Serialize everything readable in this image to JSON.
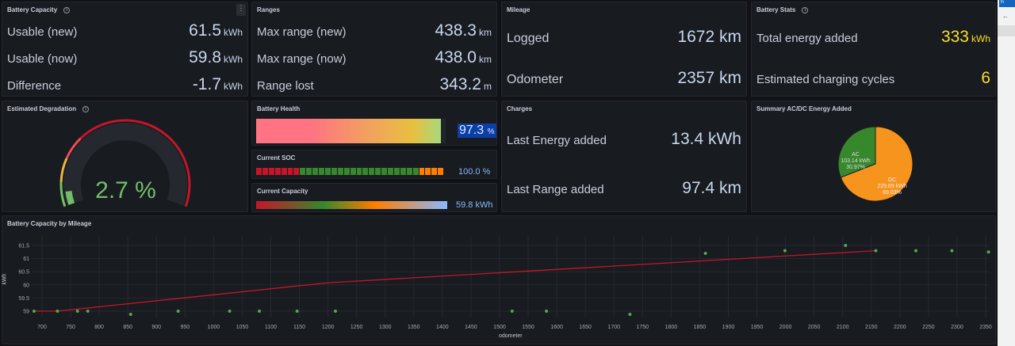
{
  "battery_capacity": {
    "title": "Battery Capacity",
    "rows": [
      {
        "label": "Usable (new)",
        "value": "61.5",
        "unit": "kWh"
      },
      {
        "label": "Usable (now)",
        "value": "59.8",
        "unit": "kWh"
      },
      {
        "label": "Difference",
        "value": "-1.7",
        "unit": "kWh"
      }
    ]
  },
  "ranges": {
    "title": "Ranges",
    "rows": [
      {
        "label": "Max range (new)",
        "value": "438.3",
        "unit": "km"
      },
      {
        "label": "Max range (now)",
        "value": "438.0",
        "unit": "km"
      },
      {
        "label": "Range lost",
        "value": "343.2",
        "unit": "m"
      }
    ]
  },
  "mileage": {
    "title": "Mileage",
    "rows": [
      {
        "label": "Logged",
        "value": "1672 km"
      },
      {
        "label": "Odometer",
        "value": "2357 km"
      }
    ]
  },
  "battery_stats": {
    "title": "Battery Stats",
    "rows": [
      {
        "label": "Total energy added",
        "value": "333",
        "unit": "kWh"
      },
      {
        "label": "Estimated charging cycles",
        "value": "6",
        "unit": ""
      }
    ]
  },
  "degradation": {
    "title": "Estimated Degradation",
    "value": "2.7 %",
    "percent": 2.7,
    "color": "#73bf69"
  },
  "battery_health": {
    "title": "Battery Health",
    "value": "97.3",
    "unit": "%",
    "percent": 97.3
  },
  "current_soc": {
    "title": "Current SOC",
    "value": "100.0 %",
    "percent": 100
  },
  "current_capacity": {
    "title": "Current Capacity",
    "value": "59.8 kWh"
  },
  "charges": {
    "title": "Charges",
    "rows": [
      {
        "label": "Last Energy added",
        "value": "13.4 kWh"
      },
      {
        "label": "Last Range added",
        "value": "97.4 km"
      }
    ]
  },
  "acdc": {
    "title": "Summary AC/DC Energy Added",
    "slices": [
      {
        "name": "AC",
        "value": "103.14 kWh",
        "percent": "30.97%",
        "pct": 30.97,
        "color": "#37872d"
      },
      {
        "name": "DC",
        "value": "229.89 kWh",
        "percent": "69.03%",
        "pct": 69.03,
        "color": "#f7941d"
      }
    ]
  },
  "chart_data": {
    "type": "scatter",
    "title": "Battery Capacity by Mileage",
    "xlabel": "odometer",
    "ylabel": "kWh",
    "xlim": [
      686,
      2358
    ],
    "ylim": [
      58.7,
      61.7
    ],
    "xticks": [
      700,
      750,
      800,
      850,
      900,
      950,
      1000,
      1050,
      1100,
      1150,
      1200,
      1250,
      1300,
      1350,
      1400,
      1450,
      1500,
      1550,
      1600,
      1650,
      1700,
      1750,
      1800,
      1850,
      1900,
      1950,
      2000,
      2050,
      2100,
      2150,
      2200,
      2250,
      2300,
      2350
    ],
    "yticks": [
      59,
      59.5,
      60,
      60.5,
      61,
      61.5
    ],
    "points": [
      [
        686,
        59
      ],
      [
        727,
        59
      ],
      [
        762,
        59
      ],
      [
        780,
        59
      ],
      [
        855,
        58.88
      ],
      [
        938,
        59
      ],
      [
        1028,
        59
      ],
      [
        1080,
        59
      ],
      [
        1146,
        59
      ],
      [
        1213,
        59
      ],
      [
        1522,
        59
      ],
      [
        1582,
        59
      ],
      [
        1728,
        58.88
      ],
      [
        1860,
        61.2
      ],
      [
        1999,
        61.3
      ],
      [
        2105,
        61.5
      ],
      [
        2158,
        61.3
      ],
      [
        2228,
        61.3
      ],
      [
        2291,
        61.3
      ],
      [
        2355,
        61.25
      ]
    ],
    "trend": [
      [
        686,
        59
      ],
      [
        727,
        59
      ],
      [
        1200,
        60.08
      ],
      [
        2158,
        61.3
      ]
    ],
    "point_color": "#56a64b",
    "line_color": "#c4162a",
    "grid": true
  }
}
